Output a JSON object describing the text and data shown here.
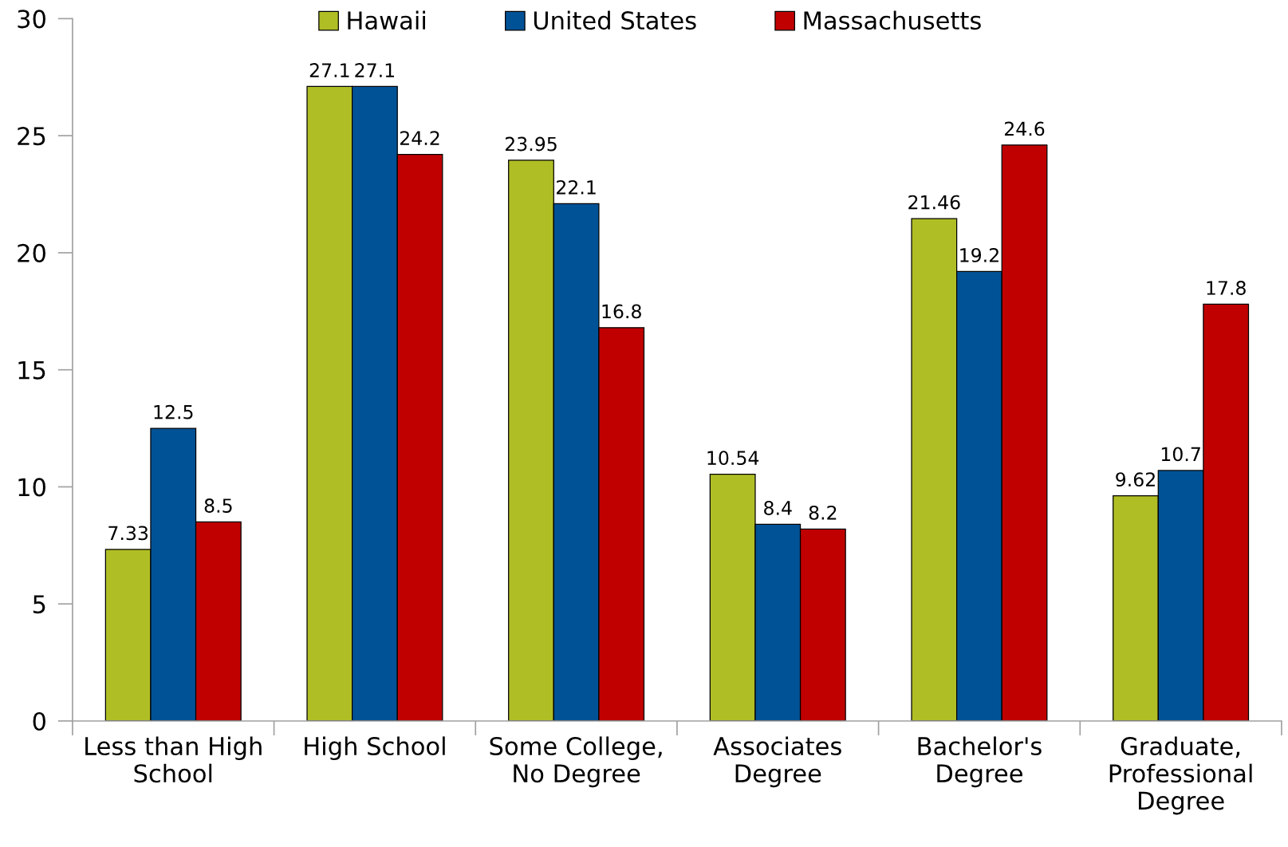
{
  "chart_data": {
    "type": "bar",
    "categories": [
      "Less than High\nSchool",
      "High School",
      "Some College,\nNo Degree",
      "Associates\nDegree",
      "Bachelor's\nDegree",
      "Graduate,\nProfessional\nDegree"
    ],
    "series": [
      {
        "name": "Hawaii",
        "color": "#b0be25",
        "values": [
          7.33,
          27.1,
          23.95,
          10.54,
          21.46,
          9.62
        ]
      },
      {
        "name": "United States",
        "color": "#005296",
        "values": [
          12.5,
          27.1,
          22.1,
          8.4,
          19.2,
          10.7
        ]
      },
      {
        "name": "Massachusetts",
        "color": "#c00000",
        "values": [
          8.5,
          24.2,
          16.8,
          8.2,
          24.6,
          17.8
        ]
      }
    ],
    "ylim": [
      0,
      30
    ],
    "yticks": [
      0,
      5,
      10,
      15,
      20,
      25,
      30
    ],
    "data_labels": true,
    "legend": "top",
    "grid": false
  }
}
